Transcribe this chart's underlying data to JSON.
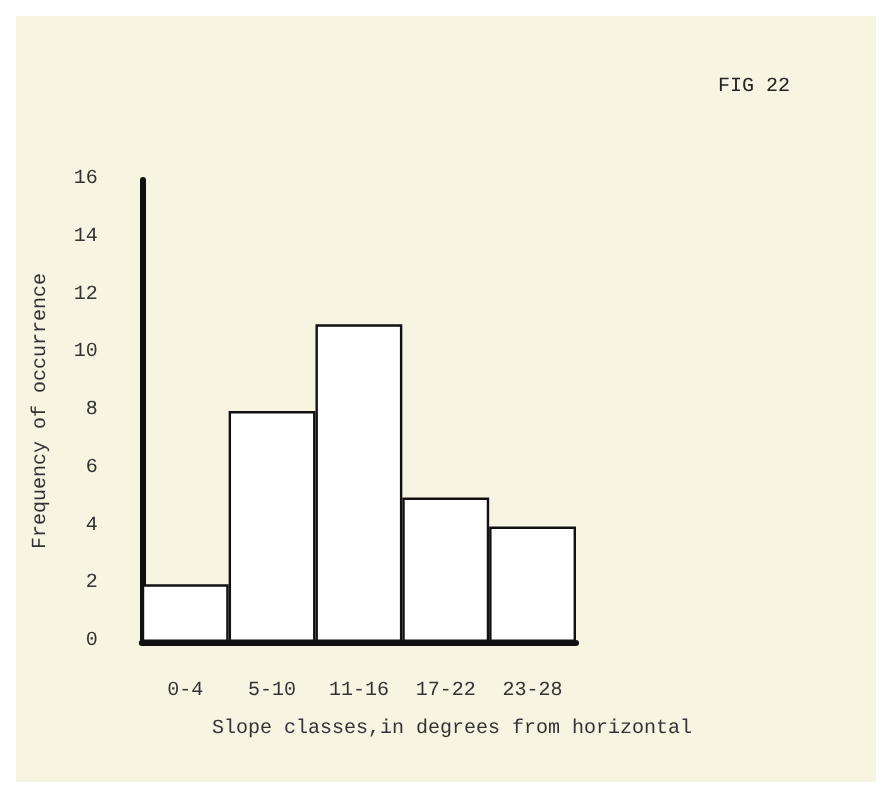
{
  "chart_data": {
    "type": "bar",
    "title": "FIG 22",
    "xlabel": "Slope classes,in degrees from horizontal",
    "ylabel": "Frequency of occurrence",
    "categories": [
      "0-4",
      "5-10",
      "11-16",
      "17-22",
      "23-28"
    ],
    "values": [
      2,
      8,
      11,
      5,
      4
    ],
    "color": "#ffffff",
    "ylim": [
      0,
      16
    ],
    "yticks": [
      0,
      2,
      4,
      6,
      8,
      10,
      12,
      14,
      16
    ],
    "grid": false
  }
}
